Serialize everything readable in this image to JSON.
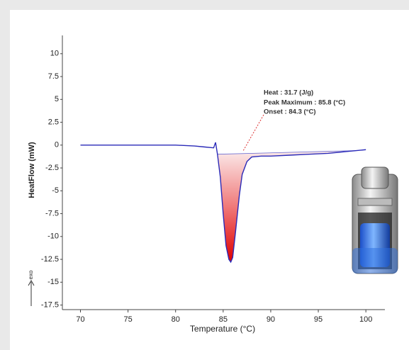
{
  "chart_data": {
    "type": "line",
    "x_label": "Temperature (°C)",
    "y_label": "HeatFlow (mW)",
    "direction_label": "exo",
    "annotations": [
      "Heat :  31.7 (J/g)",
      "Peak Maximum :  85.8 (°C)",
      "Onset :  84.3 (°C)"
    ],
    "x": [
      70,
      72,
      74,
      76,
      77.3,
      78,
      80,
      82,
      83,
      84,
      84.2,
      84.4,
      84.7,
      85,
      85.3,
      85.6,
      85.8,
      86,
      86.3,
      86.7,
      87,
      87.5,
      88,
      89,
      90,
      92,
      94,
      96,
      97,
      98,
      99,
      100
    ],
    "values": [
      0,
      0,
      0,
      0,
      0,
      0,
      0,
      -0.1,
      -0.2,
      -0.3,
      0.3,
      -1,
      -3.5,
      -7.5,
      -11,
      -12.5,
      -12.8,
      -12.3,
      -9.5,
      -5.5,
      -3.2,
      -1.8,
      -1.3,
      -1.2,
      -1.2,
      -1.1,
      -1,
      -0.9,
      -0.8,
      -0.7,
      -0.6,
      -0.5
    ],
    "color": "#2a2ab8",
    "fill_color": "#e41a1a",
    "xlim": [
      68.1,
      102
    ],
    "ylim": [
      -18,
      12
    ],
    "xticks": [
      70,
      75,
      80,
      85,
      90,
      95,
      100
    ],
    "yticks": [
      10,
      7.5,
      5,
      2.5,
      0,
      -2.5,
      -5,
      -7.5,
      -10,
      -12.5,
      -15,
      -17.5
    ]
  }
}
